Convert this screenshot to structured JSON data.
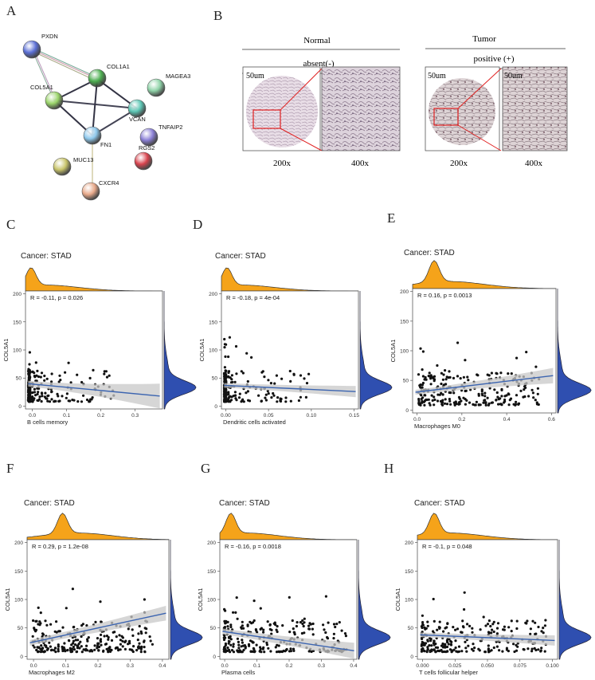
{
  "panel_letters": {
    "A": "A",
    "B": "B",
    "C": "C",
    "D": "D",
    "E": "E",
    "F": "F",
    "G": "G",
    "H": "H"
  },
  "network": {
    "nodes": [
      {
        "id": "PXDN",
        "color": "#5b6fd6"
      },
      {
        "id": "COL1A1",
        "color": "#4caf50"
      },
      {
        "id": "COL5A1",
        "color": "#9ad46a"
      },
      {
        "id": "MAGEA3",
        "color": "#8fd3a8"
      },
      {
        "id": "VCAN",
        "color": "#5cc6b4"
      },
      {
        "id": "FN1",
        "color": "#8ec8ec"
      },
      {
        "id": "TNFAIP2",
        "color": "#8a7fd6"
      },
      {
        "id": "RGS2",
        "color": "#d9444e"
      },
      {
        "id": "MUC13",
        "color": "#c8c46a"
      },
      {
        "id": "CXCR4",
        "color": "#e8a98a"
      }
    ]
  },
  "ihc": {
    "normal": {
      "header": "Normal",
      "stain": "absent(-)",
      "scale": "50um",
      "mag_low": "200x",
      "mag_high": "400x"
    },
    "tumor": {
      "header": "Tumor",
      "stain": "positive (+)",
      "scale": "50um",
      "scale_high": "50um",
      "mag_low": "200x",
      "mag_high": "400x"
    }
  },
  "colors": {
    "density_top": "#f5a31a",
    "density_right": "#2f4fb0",
    "regression": "#3b64b0",
    "ci": "#c8c8c8",
    "point": "#111111"
  },
  "chart_data": [
    {
      "id": "C",
      "type": "scatter",
      "title": "Cancer: STAD",
      "xlabel": "B cells memory",
      "ylabel": "COL5A1",
      "stat": "R = -0.11, p = 0.026",
      "xlim": [
        -0.02,
        0.38
      ],
      "ylim": [
        -5,
        205
      ],
      "xticks": [
        0.0,
        0.1,
        0.2,
        0.3
      ],
      "xticklabels": [
        "0.0",
        "0.1",
        "0.2",
        "0.3"
      ],
      "yticks": [
        0,
        50,
        100,
        150,
        200
      ],
      "yticklabels": [
        "0",
        "50",
        "100",
        "150",
        "200"
      ],
      "reg": [
        40,
        18
      ],
      "se": [
        5,
        22
      ]
    },
    {
      "id": "D",
      "type": "scatter",
      "title": "Cancer: STAD",
      "xlabel": "Dendritic cells activated",
      "ylabel": "COL5A1",
      "stat": "R = -0.18, p = 4e-04",
      "xlim": [
        -0.005,
        0.155
      ],
      "ylim": [
        -5,
        205
      ],
      "xticks": [
        0.0,
        0.05,
        0.1,
        0.15
      ],
      "xticklabels": [
        "0.00",
        "0.05",
        "0.10",
        "0.15"
      ],
      "yticks": [
        0,
        50,
        100,
        150,
        200
      ],
      "yticklabels": [
        "0",
        "50",
        "100",
        "150",
        "200"
      ],
      "reg": [
        37,
        26
      ],
      "se": [
        4,
        10
      ]
    },
    {
      "id": "E",
      "type": "scatter",
      "title": "Cancer: STAD",
      "xlabel": "Macrophages M0",
      "ylabel": "COL5A1",
      "stat": "R = 0.16, p = 0.0013",
      "xlim": [
        -0.02,
        0.62
      ],
      "ylim": [
        -5,
        205
      ],
      "xticks": [
        0.0,
        0.2,
        0.4,
        0.6
      ],
      "xticklabels": [
        "0.0",
        "0.2",
        "0.4",
        "0.6"
      ],
      "yticks": [
        0,
        50,
        100,
        150,
        200
      ],
      "yticklabels": [
        "0",
        "50",
        "100",
        "150",
        "200"
      ],
      "reg": [
        30,
        58
      ],
      "se": [
        4,
        13
      ]
    },
    {
      "id": "F",
      "type": "scatter",
      "title": "Cancer: STAD",
      "xlabel": "Macrophages M2",
      "ylabel": "COL5A1",
      "stat": "R = 0.29, p = 1.2e-08",
      "xlim": [
        -0.02,
        0.42
      ],
      "ylim": [
        -5,
        205
      ],
      "xticks": [
        0.0,
        0.1,
        0.2,
        0.3,
        0.4
      ],
      "xticklabels": [
        "0.0",
        "0.1",
        "0.2",
        "0.3",
        "0.4"
      ],
      "yticks": [
        0,
        50,
        100,
        150,
        200
      ],
      "yticklabels": [
        "0",
        "50",
        "100",
        "150",
        "200"
      ],
      "reg": [
        24,
        76
      ],
      "se": [
        5,
        13
      ]
    },
    {
      "id": "G",
      "type": "scatter",
      "title": "Cancer: STAD",
      "xlabel": "Plasma cells",
      "ylabel": "COL5A1",
      "stat": "R = -0.16, p = 0.0018",
      "xlim": [
        -0.015,
        0.41
      ],
      "ylim": [
        -5,
        205
      ],
      "xticks": [
        0.0,
        0.1,
        0.2,
        0.3,
        0.4
      ],
      "xticklabels": [
        "0.0",
        "0.1",
        "0.2",
        "0.3",
        "0.4"
      ],
      "yticks": [
        0,
        50,
        100,
        150,
        200
      ],
      "yticklabels": [
        "0",
        "50",
        "100",
        "150",
        "200"
      ],
      "reg": [
        44,
        10
      ],
      "se": [
        5,
        14
      ]
    },
    {
      "id": "H",
      "type": "scatter",
      "title": "Cancer: STAD",
      "xlabel": "T cells follicular helper",
      "ylabel": "COL5A1",
      "stat": "R = -0.1, p = 0.048",
      "xlim": [
        -0.004,
        0.104
      ],
      "ylim": [
        -5,
        205
      ],
      "xticks": [
        0.0,
        0.025,
        0.05,
        0.075,
        0.1
      ],
      "xticklabels": [
        "0.000",
        "0.025",
        "0.050",
        "0.075",
        "0.100"
      ],
      "yticks": [
        0,
        50,
        100,
        150,
        200
      ],
      "yticklabels": [
        "0",
        "50",
        "100",
        "150",
        "200"
      ],
      "reg": [
        38,
        28
      ],
      "se": [
        4,
        9
      ]
    }
  ]
}
